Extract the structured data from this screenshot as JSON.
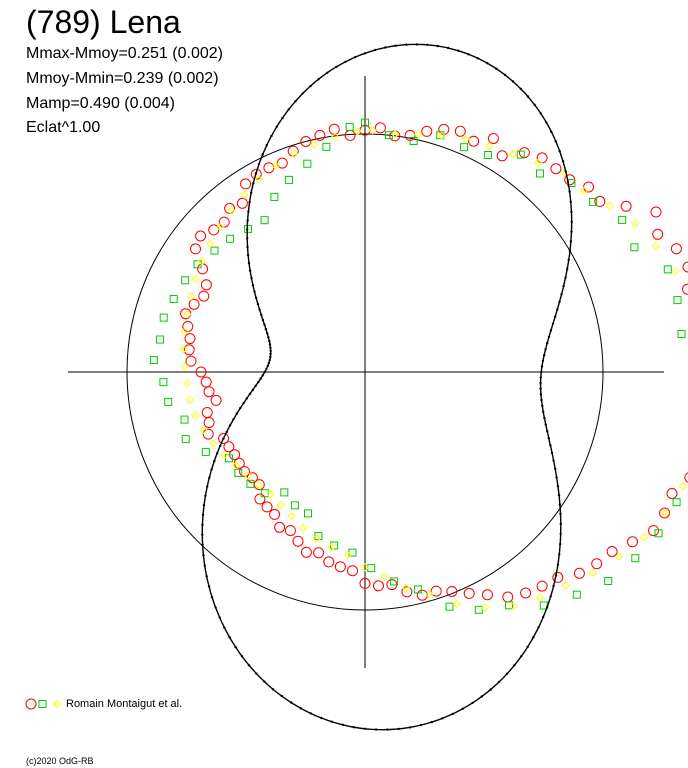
{
  "title": "(789) Lena",
  "stats": [
    "Mmax-Mmoy=0.251 (0.002)",
    "Mmoy-Mmin=0.239 (0.002)",
    "Mamp=0.490 (0.004)",
    "Eclat^1.00"
  ],
  "legend": {
    "label": "Romain Montaigut et al.",
    "symbols": [
      "red-circle",
      "green-square",
      "yellow-diamond"
    ]
  },
  "copyright": "(c)2020 OdG-RB",
  "colors": {
    "series_red": "#ff0000",
    "series_green": "#00cc00",
    "series_yellow": "#ffff00",
    "curve": "#000000",
    "axes": "#000000",
    "reference_circle": "#000000"
  },
  "chart_data": {
    "type": "scatter",
    "coordinate_system": "polar",
    "rotation_unit": "phase (0-1)",
    "magnitude_offset_unit": "mag",
    "reference_circle_radius": 0,
    "grid": false,
    "legend_position": "bottom-left",
    "title": "(789) Lena",
    "fourier_fit": {
      "terms": [
        [
          0,
          0
        ],
        [
          -0.02,
          0.05
        ],
        [
          0.105,
          0.02
        ],
        [
          0,
          0.01
        ]
      ]
    },
    "series": [
      {
        "name": "Romain Montaigut et al.",
        "marker": "circle",
        "color": "#ff0000",
        "phase": [
          0.0,
          0.01,
          0.02,
          0.03,
          0.04,
          0.05,
          0.06,
          0.07,
          0.08,
          0.09,
          0.1,
          0.11,
          0.12,
          0.13,
          0.14,
          0.15,
          0.16,
          0.17,
          0.18,
          0.19,
          0.2,
          0.21,
          0.22,
          0.23,
          0.24,
          0.25,
          0.26,
          0.27,
          0.28,
          0.29,
          0.3,
          0.31,
          0.32,
          0.33,
          0.34,
          0.35,
          0.36,
          0.37,
          0.38,
          0.39,
          0.4,
          0.41,
          0.42,
          0.43,
          0.44,
          0.45,
          0.46,
          0.47,
          0.48,
          0.49,
          0.5,
          0.51,
          0.52,
          0.53,
          0.54,
          0.55,
          0.56,
          0.57,
          0.58,
          0.59,
          0.6,
          0.61,
          0.62,
          0.63,
          0.64,
          0.65,
          0.66,
          0.67,
          0.68,
          0.69,
          0.7,
          0.71,
          0.72,
          0.73,
          0.74,
          0.75,
          0.76,
          0.77,
          0.78,
          0.79,
          0.8,
          0.81,
          0.82,
          0.83,
          0.84,
          0.85,
          0.86,
          0.87,
          0.88,
          0.89,
          0.9,
          0.91,
          0.92,
          0.93,
          0.94,
          0.95,
          0.96,
          0.97,
          0.98,
          0.99
        ],
        "delta_mag": [
          0.004,
          0.007,
          0.0,
          0.003,
          0.011,
          0.018,
          0.022,
          0.018,
          0.03,
          0.019,
          0.035,
          0.042,
          0.043,
          0.045,
          0.055,
          0.055,
          0.075,
          0.099,
          0.09,
          0.102,
          0.107,
          0.1,
          0.115,
          0.123,
          0.12,
          0.108,
          0.111,
          0.122,
          0.117,
          0.116,
          0.109,
          0.097,
          0.098,
          0.096,
          0.083,
          0.071,
          0.066,
          0.059,
          0.046,
          0.042,
          0.037,
          0.03,
          0.017,
          0.007,
          -0.002,
          -0.008,
          -0.008,
          -0.015,
          -0.025,
          -0.025,
          -0.028,
          -0.041,
          -0.044,
          -0.047,
          -0.054,
          -0.051,
          -0.059,
          -0.066,
          -0.064,
          -0.073,
          -0.075,
          -0.077,
          -0.088,
          -0.088,
          -0.086,
          -0.087,
          -0.088,
          -0.087,
          -0.086,
          -0.073,
          -0.078,
          -0.079,
          -0.091,
          -0.085,
          -0.083,
          -0.078,
          -0.067,
          -0.064,
          -0.063,
          -0.058,
          -0.052,
          -0.057,
          -0.063,
          -0.06,
          -0.048,
          -0.03,
          -0.026,
          -0.032,
          -0.034,
          -0.027,
          -0.031,
          -0.016,
          -0.013,
          -0.013,
          -0.014,
          -0.006,
          0.0,
          0.003,
          0.007,
          -0.001
        ]
      },
      {
        "name": "Romain Montaigut et al.",
        "marker": "square",
        "color": "#00cc00",
        "phase": [
          0.0,
          0.016,
          0.033,
          0.049,
          0.066,
          0.082,
          0.099,
          0.115,
          0.132,
          0.148,
          0.165,
          0.181,
          0.198,
          0.214,
          0.231,
          0.247,
          0.264,
          0.28,
          0.297,
          0.313,
          0.33,
          0.346,
          0.363,
          0.379,
          0.396,
          0.412,
          0.429,
          0.445,
          0.462,
          0.478,
          0.495,
          0.511,
          0.528,
          0.544,
          0.561,
          0.577,
          0.594,
          0.61,
          0.627,
          0.643,
          0.66,
          0.676,
          0.693,
          0.709,
          0.726,
          0.742,
          0.759,
          0.775,
          0.792,
          0.808,
          0.825,
          0.841,
          0.858,
          0.874,
          0.891,
          0.907,
          0.924,
          0.94,
          0.957,
          0.973,
          0.99
        ],
        "delta_mag": [
          0.012,
          0.0,
          -0.002,
          0.011,
          0.008,
          0.012,
          0.031,
          0.028,
          0.044,
          0.049,
          0.064,
          0.062,
          0.086,
          0.087,
          0.085,
          0.098,
          0.102,
          0.108,
          0.113,
          0.105,
          0.102,
          0.095,
          0.087,
          0.073,
          0.059,
          0.038,
          0.027,
          0.012,
          -0.015,
          -0.028,
          -0.044,
          -0.06,
          -0.065,
          -0.071,
          -0.09,
          -0.092,
          -0.098,
          -0.085,
          -0.082,
          -0.08,
          -0.081,
          -0.063,
          -0.049,
          -0.054,
          -0.041,
          -0.038,
          -0.028,
          -0.032,
          -0.031,
          -0.035,
          -0.038,
          -0.041,
          -0.047,
          -0.051,
          -0.056,
          -0.059,
          -0.043,
          -0.033,
          -0.023,
          -0.01,
          0.008
        ]
      },
      {
        "name": "Romain Montaigut et al.",
        "marker": "diamond",
        "color": "#ffff00",
        "phase": [
          0.005,
          0.02,
          0.035,
          0.05,
          0.065,
          0.08,
          0.095,
          0.11,
          0.125,
          0.14,
          0.155,
          0.17,
          0.185,
          0.2,
          0.215,
          0.23,
          0.245,
          0.26,
          0.275,
          0.29,
          0.305,
          0.32,
          0.335,
          0.35,
          0.365,
          0.38,
          0.395,
          0.41,
          0.425,
          0.44,
          0.455,
          0.47,
          0.485,
          0.5,
          0.515,
          0.53,
          0.545,
          0.56,
          0.575,
          0.59,
          0.605,
          0.62,
          0.635,
          0.65,
          0.665,
          0.68,
          0.695,
          0.71,
          0.725,
          0.74,
          0.755,
          0.77,
          0.785,
          0.8,
          0.815,
          0.83,
          0.845,
          0.86,
          0.875,
          0.89,
          0.905,
          0.92,
          0.935,
          0.95,
          0.965,
          0.98,
          0.995
        ],
        "delta_mag": [
          0.004,
          0.002,
          0.006,
          0.011,
          0.017,
          0.021,
          0.027,
          0.035,
          0.046,
          0.049,
          0.061,
          0.074,
          0.083,
          0.093,
          0.104,
          0.106,
          0.107,
          0.109,
          0.108,
          0.109,
          0.105,
          0.099,
          0.091,
          0.08,
          0.069,
          0.058,
          0.05,
          0.041,
          0.028,
          0.012,
          -0.007,
          -0.019,
          -0.034,
          -0.045,
          -0.057,
          -0.063,
          -0.068,
          -0.074,
          -0.08,
          -0.085,
          -0.088,
          -0.087,
          -0.086,
          -0.083,
          -0.079,
          -0.074,
          -0.07,
          -0.066,
          -0.064,
          -0.063,
          -0.061,
          -0.058,
          -0.056,
          -0.054,
          -0.051,
          -0.047,
          -0.043,
          -0.039,
          -0.035,
          -0.03,
          -0.025,
          -0.019,
          -0.014,
          -0.009,
          -0.005,
          -0.001,
          0.003
        ]
      }
    ]
  }
}
